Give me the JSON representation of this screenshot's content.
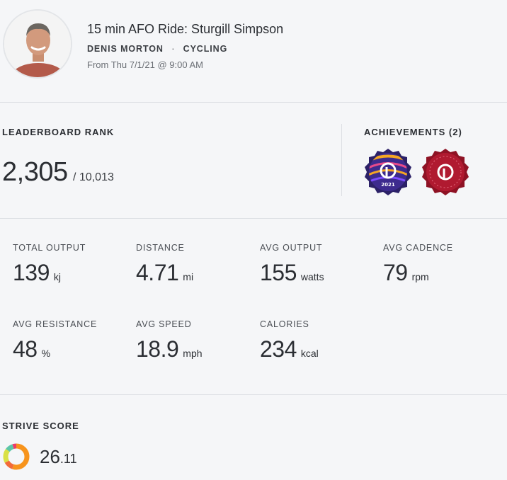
{
  "workout": {
    "title": "15 min AFO Ride: Sturgill Simpson",
    "instructor": "DENIS MORTON",
    "separator": "·",
    "discipline": "CYCLING",
    "date_text": "From Thu 7/1/21 @ 9:00 AM"
  },
  "leaderboard": {
    "label": "LEADERBOARD RANK",
    "rank": "2,305",
    "total": "/ 10,013"
  },
  "achievements": {
    "label": "ACHIEVEMENTS (2)",
    "badges": [
      {
        "icon": "peloton-logo-icon",
        "text": "2021",
        "color": "#3b2a8a"
      },
      {
        "icon": "peloton-logo-icon",
        "text": "",
        "color": "#b01a30"
      }
    ]
  },
  "metrics": [
    {
      "label": "TOTAL OUTPUT",
      "value": "139",
      "unit": "kj"
    },
    {
      "label": "DISTANCE",
      "value": "4.71",
      "unit": "mi"
    },
    {
      "label": "AVG OUTPUT",
      "value": "155",
      "unit": "watts"
    },
    {
      "label": "AVG CADENCE",
      "value": "79",
      "unit": "rpm"
    },
    {
      "label": "AVG RESISTANCE",
      "value": "48",
      "unit": "%"
    },
    {
      "label": "AVG SPEED",
      "value": "18.9",
      "unit": "mph"
    },
    {
      "label": "CALORIES",
      "value": "234",
      "unit": "kcal"
    }
  ],
  "strive": {
    "label": "STRIVE SCORE",
    "value_whole": "26",
    "value_decimal": ".11",
    "zones": [
      {
        "color": "#f7941d",
        "fraction": 0.55
      },
      {
        "color": "#f26a3a",
        "fraction": 0.12
      },
      {
        "color": "#d9e145",
        "fraction": 0.18
      },
      {
        "color": "#5cc6a8",
        "fraction": 0.1
      },
      {
        "color": "#ec3b6a",
        "fraction": 0.05
      }
    ]
  }
}
